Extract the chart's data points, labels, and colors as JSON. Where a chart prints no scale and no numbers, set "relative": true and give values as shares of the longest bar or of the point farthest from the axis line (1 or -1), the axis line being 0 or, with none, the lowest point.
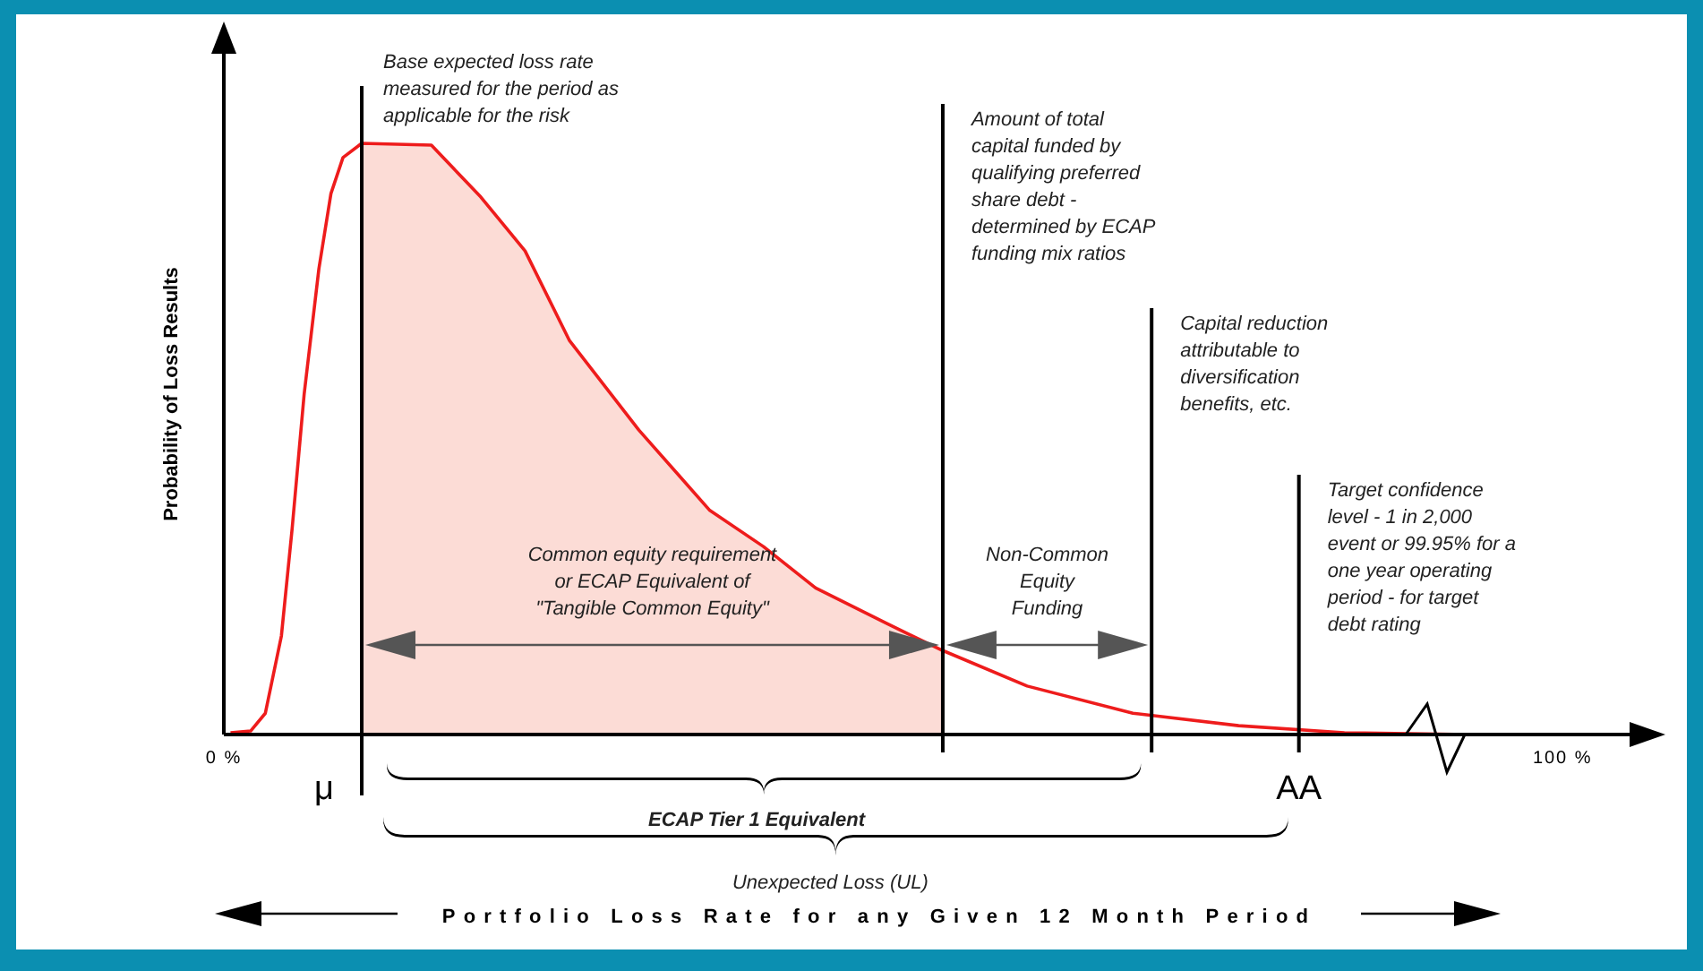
{
  "chart_data": {
    "type": "line",
    "relative": true,
    "ylabel": "Probability of Loss Results",
    "xlim": [
      0,
      105
    ],
    "xticks": [
      {
        "value": 0,
        "label": "0 %"
      },
      {
        "value": 100,
        "label": "100 %"
      }
    ],
    "x": [
      0.5,
      2.0,
      3.1,
      4.3,
      5.1,
      6.0,
      7.1,
      8.0,
      8.9,
      10.3,
      15.5,
      19.2,
      22.5,
      25.8,
      31.0,
      36.3,
      40.3,
      44.2,
      49.5,
      53.7,
      60.0,
      67.9,
      75.8,
      83.7,
      93.0
    ],
    "series": [
      {
        "type": "area",
        "color": "#fcdcd6",
        "x": [
          10.3,
          15.5,
          19.2,
          22.5,
          25.8,
          31.0,
          36.3,
          40.3,
          44.2,
          49.5,
          53.7
        ],
        "values": [
          1.0,
          0.997,
          0.909,
          0.818,
          0.667,
          0.515,
          0.379,
          0.318,
          0.248,
          0.188,
          0.142
        ]
      },
      {
        "type": "line",
        "color": "#ee1c1c",
        "values": [
          0.003,
          0.006,
          0.036,
          0.167,
          0.348,
          0.576,
          0.788,
          0.915,
          0.976,
          1.0,
          0.997,
          0.909,
          0.818,
          0.667,
          0.515,
          0.379,
          0.318,
          0.248,
          0.188,
          0.142,
          0.082,
          0.036,
          0.015,
          0.003,
          0.0
        ]
      }
    ],
    "ref_lines": [
      {
        "axis": "x",
        "value": 10.3,
        "label": "Base expected loss rate measured for the period as applicable for the risk",
        "color": "#000000"
      },
      {
        "axis": "x",
        "value": 53.7,
        "label": "Amount of total capital funded by qualifying preferred share debt - determined by ECAP funding mix ratios",
        "color": "#000000"
      },
      {
        "axis": "x",
        "value": 69.3,
        "label": "Capital reduction attributable to diversification benefits, etc.",
        "color": "#000000"
      },
      {
        "axis": "x",
        "value": 80.3,
        "label": "Target confidence level - 1 in 2,000 event or 99.95% for a one year operating period - for target debt rating",
        "color": "#000000"
      }
    ],
    "annotations": [
      "Common equity requirement or ECAP Equivalent of \"Tangible Common Equity\"",
      "Non-Common Equity Funding",
      "ECAP Tier 1 Equivalent",
      "Unexpected Loss (UL)",
      "Portfolio Loss Rate for any Given 12 Month Period",
      {
        "text": "μ",
        "x": 10.3,
        "y": 0
      },
      {
        "text": "AA",
        "x": 80.3,
        "y": 0
      }
    ],
    "legend": false,
    "grid": false,
    "marker": "none",
    "line_style": "solid"
  }
}
